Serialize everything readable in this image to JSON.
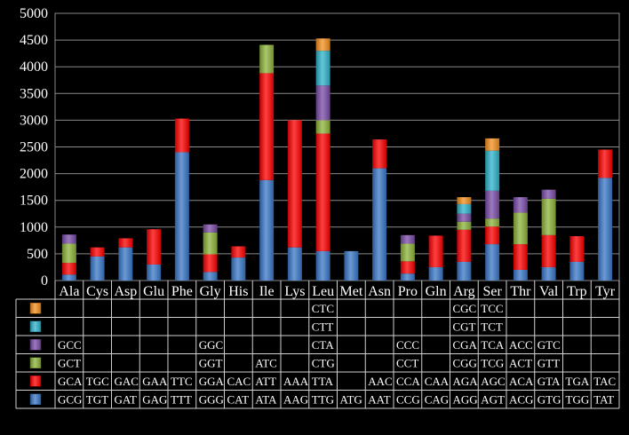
{
  "chart_data": {
    "type": "bar",
    "stacked": true,
    "title": "",
    "xlabel": "",
    "ylabel": "",
    "ylim": [
      0,
      5000
    ],
    "yticks": [
      0,
      500,
      1000,
      1500,
      2000,
      2500,
      3000,
      3500,
      4000,
      4500,
      5000
    ],
    "grid": true,
    "legend": "table-below",
    "categories": [
      "Ala",
      "Cys",
      "Asp",
      "Glu",
      "Phe",
      "Gly",
      "His",
      "Ile",
      "Lys",
      "Leu",
      "Met",
      "Asn",
      "Pro",
      "Gln",
      "Arg",
      "Ser",
      "Thr",
      "Val",
      "Trp",
      "Tyr"
    ],
    "series": [
      {
        "name": "series-1",
        "color": "#3a78c8",
        "values": [
          110,
          450,
          620,
          300,
          2400,
          160,
          430,
          1880,
          620,
          550,
          550,
          2100,
          130,
          250,
          350,
          680,
          200,
          250,
          350,
          1920
        ]
      },
      {
        "name": "series-2",
        "color": "#ff0000",
        "values": [
          220,
          170,
          170,
          660,
          630,
          330,
          210,
          2000,
          2380,
          2200,
          0,
          540,
          230,
          590,
          600,
          330,
          480,
          600,
          480,
          530
        ]
      },
      {
        "name": "series-3",
        "color": "#8db43a",
        "values": [
          360,
          0,
          0,
          0,
          0,
          410,
          0,
          530,
          0,
          250,
          0,
          0,
          330,
          0,
          150,
          150,
          590,
          680,
          0,
          0
        ]
      },
      {
        "name": "series-4",
        "color": "#7b4ca8",
        "values": [
          170,
          0,
          0,
          0,
          0,
          150,
          0,
          0,
          0,
          650,
          0,
          0,
          160,
          0,
          150,
          520,
          290,
          170,
          0,
          0
        ]
      },
      {
        "name": "series-5",
        "color": "#2fb4cc",
        "values": [
          0,
          0,
          0,
          0,
          0,
          0,
          0,
          0,
          0,
          650,
          0,
          0,
          0,
          0,
          180,
          750,
          0,
          0,
          0,
          0
        ]
      },
      {
        "name": "series-6",
        "color": "#f5901e",
        "values": [
          0,
          0,
          0,
          0,
          0,
          0,
          0,
          0,
          0,
          230,
          0,
          0,
          0,
          0,
          130,
          230,
          0,
          0,
          0,
          0
        ]
      }
    ],
    "table": {
      "rows": [
        [
          "",
          "",
          "",
          "",
          "",
          "",
          "",
          "",
          "",
          "CTC",
          "",
          "",
          "",
          "",
          "CGC",
          "TCC",
          "",
          "",
          "",
          ""
        ],
        [
          "",
          "",
          "",
          "",
          "",
          "",
          "",
          "",
          "",
          "CTT",
          "",
          "",
          "",
          "",
          "CGT",
          "TCT",
          "",
          "",
          "",
          ""
        ],
        [
          "GCC",
          "",
          "",
          "",
          "",
          "GGC",
          "",
          "",
          "",
          "CTA",
          "",
          "",
          "CCC",
          "",
          "CGA",
          "TCA",
          "ACC",
          "GTC",
          "",
          ""
        ],
        [
          "GCT",
          "",
          "",
          "",
          "",
          "GGT",
          "",
          "ATC",
          "",
          "CTG",
          "",
          "",
          "CCT",
          "",
          "CGG",
          "TCG",
          "ACT",
          "GTT",
          "",
          ""
        ],
        [
          "GCA",
          "TGC",
          "GAC",
          "GAA",
          "TTC",
          "GGA",
          "CAC",
          "ATT",
          "AAA",
          "TTA",
          "",
          "AAC",
          "CCA",
          "CAA",
          "AGA",
          "AGC",
          "ACA",
          "GTA",
          "TGA",
          "TAC"
        ],
        [
          "GCG",
          "TGT",
          "GAT",
          "GAG",
          "TTT",
          "GGG",
          "CAT",
          "ATA",
          "AAG",
          "TTG",
          "ATG",
          "AAT",
          "CCG",
          "CAG",
          "AGG",
          "AGT",
          "ACG",
          "GTG",
          "TGG",
          "TAT"
        ]
      ],
      "row_series": [
        "series-6",
        "series-5",
        "series-4",
        "series-3",
        "series-2",
        "series-1"
      ]
    }
  }
}
